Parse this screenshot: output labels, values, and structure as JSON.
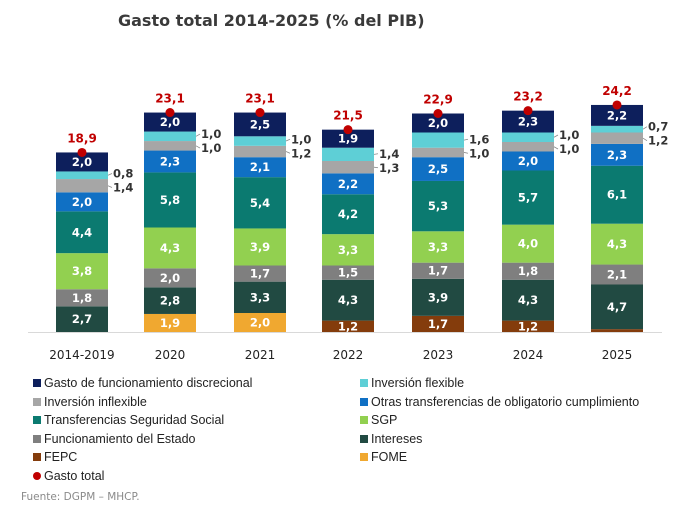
{
  "chart_data": {
    "type": "bar",
    "stacked": true,
    "title": "Gasto total 2014-2025 (% del PIB)",
    "categories": [
      "2014-2019",
      "2020",
      "2021",
      "2022",
      "2023",
      "2024",
      "2025"
    ],
    "series": [
      {
        "name": "FOME",
        "color": "#f0a830",
        "values": [
          null,
          1.9,
          2.0,
          null,
          null,
          null,
          null
        ]
      },
      {
        "name": "FEPC",
        "color": "#843c0c",
        "values": [
          null,
          null,
          null,
          1.2,
          1.7,
          1.2,
          0.3
        ]
      },
      {
        "name": "Intereses",
        "color": "#214a42",
        "values": [
          2.7,
          2.8,
          3.3,
          4.3,
          3.9,
          4.3,
          4.7
        ]
      },
      {
        "name": "Funcionamiento del Estado",
        "color": "#7f7f7f",
        "values": [
          1.8,
          2.0,
          1.7,
          1.5,
          1.7,
          1.8,
          2.1
        ]
      },
      {
        "name": "SGP",
        "color": "#92d050",
        "values": [
          3.8,
          4.3,
          3.9,
          3.3,
          3.3,
          4.0,
          4.3
        ]
      },
      {
        "name": "Transferencias Seguridad Social",
        "color": "#0b7a70",
        "values": [
          4.4,
          5.8,
          5.4,
          4.2,
          5.3,
          5.7,
          6.1
        ]
      },
      {
        "name": "Otras transferencias de obligatorio cumplimiento",
        "color": "#1070c4",
        "values": [
          2.0,
          2.3,
          2.1,
          2.2,
          2.5,
          2.0,
          2.3
        ]
      },
      {
        "name": "Inversión inflexible",
        "color": "#a6a6a6",
        "values": [
          1.4,
          1.0,
          1.2,
          1.3,
          1.0,
          1.0,
          1.2
        ]
      },
      {
        "name": "Inversión flexible",
        "color": "#5ecfd6",
        "values": [
          0.8,
          1.0,
          1.0,
          1.4,
          1.6,
          1.0,
          0.7
        ]
      },
      {
        "name": "Gasto de funcionamiento discrecional",
        "color": "#0d1f5c",
        "values": [
          2.0,
          2.0,
          2.5,
          1.9,
          2.0,
          2.3,
          2.2
        ]
      }
    ],
    "total": {
      "name": "Gasto total",
      "color": "#c00000",
      "values": [
        18.9,
        23.1,
        23.1,
        21.5,
        22.9,
        23.2,
        24.2
      ]
    },
    "legend_placement": "bottom",
    "grid": false,
    "decimal_separator": ","
  },
  "legend": [
    {
      "label": "Gasto de funcionamiento discrecional",
      "color": "#0d1f5c",
      "shape": "square"
    },
    {
      "label": "Inversión flexible",
      "color": "#5ecfd6",
      "shape": "square"
    },
    {
      "label": "Inversión inflexible",
      "color": "#a6a6a6",
      "shape": "square"
    },
    {
      "label": "Otras transferencias de obligatorio cumplimiento",
      "color": "#1070c4",
      "shape": "square"
    },
    {
      "label": "Transferencias Seguridad Social",
      "color": "#0b7a70",
      "shape": "square"
    },
    {
      "label": "SGP",
      "color": "#92d050",
      "shape": "square"
    },
    {
      "label": "Funcionamiento del Estado",
      "color": "#7f7f7f",
      "shape": "square"
    },
    {
      "label": "Intereses",
      "color": "#214a42",
      "shape": "square"
    },
    {
      "label": "FEPC",
      "color": "#843c0c",
      "shape": "square"
    },
    {
      "label": "FOME",
      "color": "#f0a830",
      "shape": "square"
    },
    {
      "label": "Gasto total",
      "color": "#c00000",
      "shape": "circle"
    }
  ],
  "source": "Fuente: DGPM – MHCP."
}
